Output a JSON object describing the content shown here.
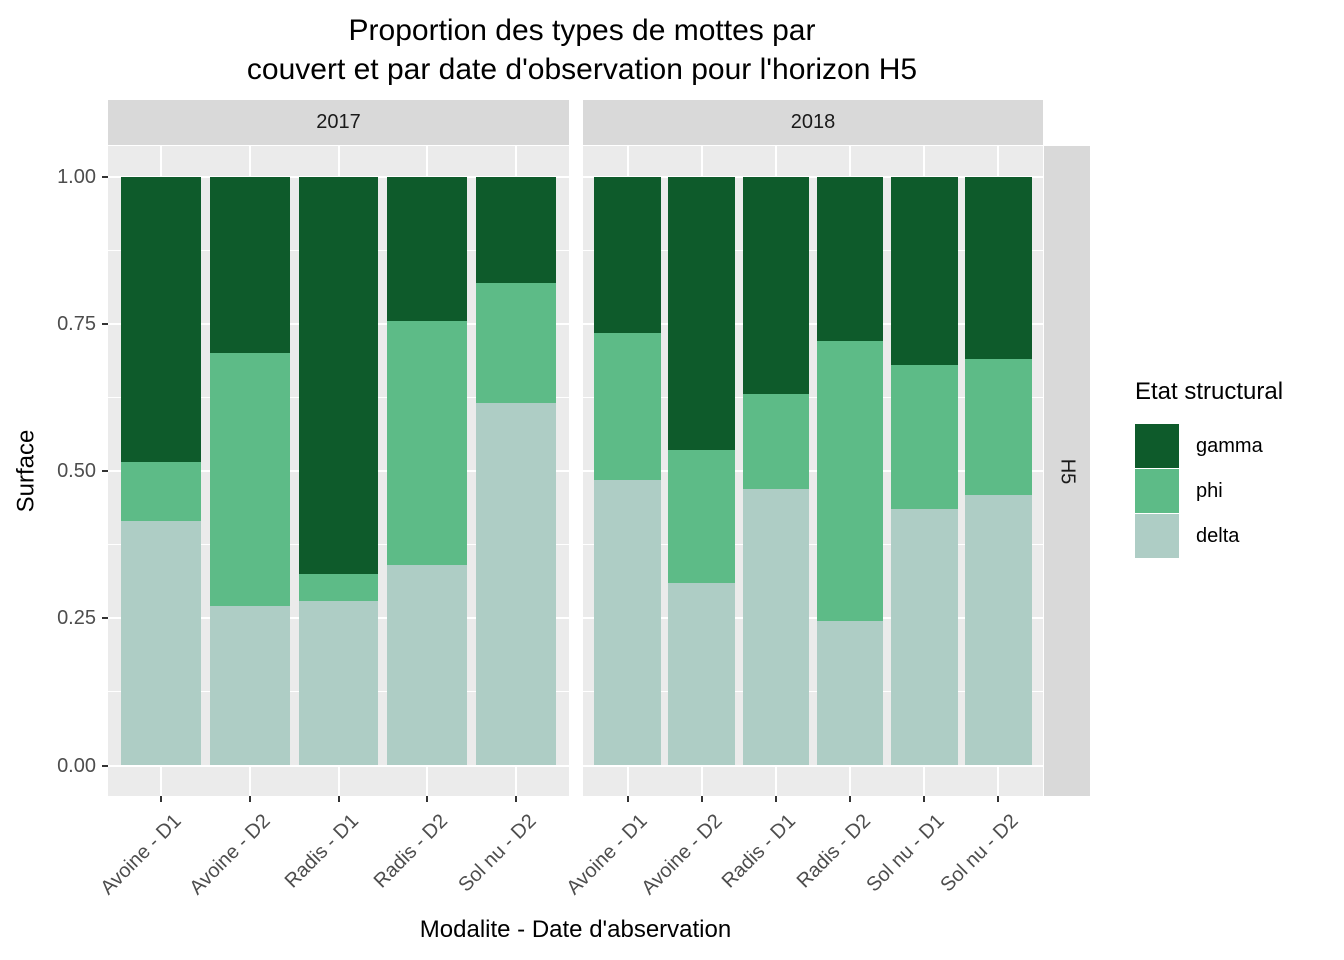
{
  "title": {
    "line1": "Proportion des types de mottes par",
    "line2": "couvert et par date d'observation pour l'horizon H5"
  },
  "chart_data": {
    "type": "bar",
    "stacked": true,
    "title": "Proportion des types de mottes par couvert et par date d'observation pour l'horizon H5",
    "xlabel": "Modalite - Date d'abservation",
    "ylabel": "Surface",
    "ylim": [
      0,
      1
    ],
    "y_ticks": [
      0,
      0.25,
      0.5,
      0.75,
      1
    ],
    "y_tick_labels": [
      "0.00",
      "0.25",
      "0.50",
      "0.75",
      "1.00"
    ],
    "y_minor_ticks": [
      0.125,
      0.375,
      0.625,
      0.875
    ],
    "grid": true,
    "legend_position": "right",
    "legend_title": "Etat structural",
    "row_facet_label": "H5",
    "column_facet_labels": [
      "2017",
      "2018"
    ],
    "series": [
      {
        "name": "gamma",
        "color": "#0E5B2B"
      },
      {
        "name": "phi",
        "color": "#5DBB87"
      },
      {
        "name": "delta",
        "color": "#AECDC5"
      }
    ],
    "stack_order": [
      "delta",
      "phi",
      "gamma"
    ],
    "facets": [
      {
        "label": "2017",
        "categories": [
          "Avoine - D1",
          "Avoine - D2",
          "Radis - D1",
          "Radis - D2",
          "Sol nu - D2"
        ],
        "values": {
          "delta": [
            0.415,
            0.27,
            0.28,
            0.34,
            0.615
          ],
          "phi": [
            0.1,
            0.43,
            0.045,
            0.415,
            0.205
          ],
          "gamma": [
            0.485,
            0.3,
            0.675,
            0.245,
            0.18
          ]
        }
      },
      {
        "label": "2018",
        "categories": [
          "Avoine - D1",
          "Avoine - D2",
          "Radis - D1",
          "Radis - D2",
          "Sol nu - D1",
          "Sol nu - D2"
        ],
        "values": {
          "delta": [
            0.485,
            0.31,
            0.47,
            0.245,
            0.435,
            0.46
          ],
          "phi": [
            0.25,
            0.225,
            0.16,
            0.475,
            0.245,
            0.23
          ],
          "gamma": [
            0.265,
            0.465,
            0.37,
            0.28,
            0.32,
            0.31
          ]
        }
      }
    ],
    "theme": {
      "panel_bg": "#EBEBEB",
      "strip_bg": "#D9D9D9",
      "grid_color": "#FFFFFF",
      "axis_text_color": "#4D4D4D",
      "tick_color": "#333333",
      "strip_text_color": "#1A1A1A"
    }
  }
}
